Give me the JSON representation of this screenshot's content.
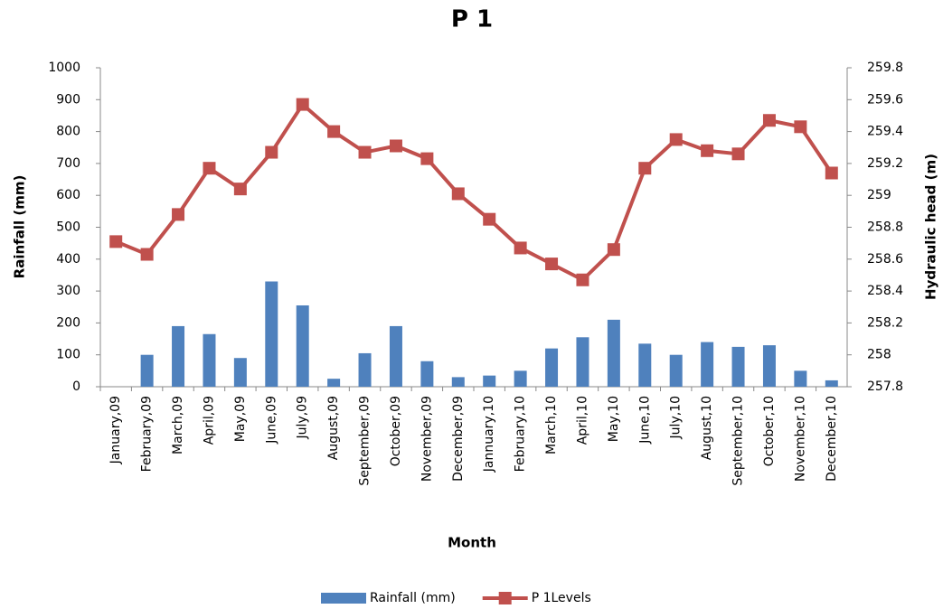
{
  "chart_data": {
    "type": "combo",
    "title": "P 1",
    "x_label": "Month",
    "y_label": "Rainfall  (mm)",
    "y2_label": "Hydraulic head (m)",
    "categories": [
      "January,09",
      "February,09",
      "March,09",
      "April,09",
      "May,09",
      "June,09",
      "July,09",
      "August,09",
      "September,09",
      "October,09",
      "November,09",
      "December,09",
      "Jannuary,10",
      "February,10",
      "March,10",
      "April,10",
      "May,10",
      "June,10",
      "July,10",
      "August,10",
      "September,10",
      "October,10",
      "November,10",
      "December,10"
    ],
    "series": [
      {
        "name": "Rainfall (mm)",
        "type": "bar",
        "color": "#4f81bd",
        "values": [
          0,
          100,
          190,
          165,
          90,
          330,
          255,
          25,
          105,
          190,
          80,
          30,
          35,
          50,
          120,
          155,
          210,
          135,
          100,
          140,
          125,
          130,
          50,
          20
        ]
      },
      {
        "name": "P 1Levels",
        "type": "line",
        "axis": "y2",
        "color": "#c0504d",
        "values": [
          258.71,
          258.63,
          258.88,
          259.17,
          259.04,
          259.27,
          259.57,
          259.4,
          259.27,
          259.31,
          259.23,
          259.01,
          258.85,
          258.67,
          258.57,
          258.47,
          258.66,
          259.17,
          259.35,
          259.28,
          259.26,
          259.47,
          259.43,
          259.14
        ]
      }
    ],
    "ylim": [
      0,
      1000
    ],
    "yticks": [
      0,
      100,
      200,
      300,
      400,
      500,
      600,
      700,
      800,
      900,
      1000
    ],
    "y2lim": [
      257.8,
      259.8
    ],
    "y2ticks": [
      257.8,
      258,
      258.2,
      258.4,
      258.6,
      258.8,
      259,
      259.2,
      259.4,
      259.6,
      259.8
    ],
    "legend": "bottom"
  }
}
